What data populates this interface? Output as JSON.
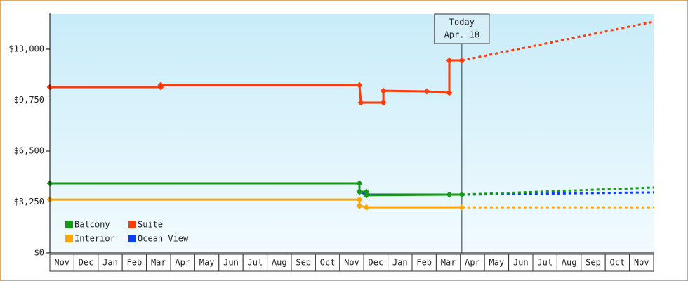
{
  "chart_data": {
    "type": "line",
    "months": [
      "Nov",
      "Dec",
      "Jan",
      "Feb",
      "Mar",
      "Apr",
      "May",
      "Jun",
      "Jul",
      "Aug",
      "Sep",
      "Oct",
      "Nov",
      "Dec",
      "Jan",
      "Feb",
      "Mar",
      "Apr",
      "May",
      "Jun",
      "Jul",
      "Aug",
      "Sep",
      "Oct",
      "Nov"
    ],
    "xlim": [
      0,
      25
    ],
    "ylim": [
      0,
      15240
    ],
    "yticks": [
      {
        "value": 0,
        "label": "$0"
      },
      {
        "value": 3250,
        "label": "$3,250"
      },
      {
        "value": 6500,
        "label": "$6,500"
      },
      {
        "value": 9750,
        "label": "$9,750"
      },
      {
        "value": 13000,
        "label": "$13,000"
      }
    ],
    "annotation": {
      "lines": [
        "Today",
        "Apr. 18"
      ],
      "x": 17.06
    },
    "series": [
      {
        "name": "Balcony",
        "color": "#159a15",
        "x": [
          0,
          12.82,
          12.82,
          13.11,
          13.11,
          16.54,
          17.06
        ],
        "values": [
          4440,
          4440,
          3900,
          3900,
          3680,
          3720,
          3720
        ],
        "projection_x": [
          17.06,
          25
        ],
        "projection_values": [
          3720,
          4170
        ]
      },
      {
        "name": "Suite",
        "color": "#ff3b0a",
        "x": [
          0,
          4.59,
          4.59,
          12.82,
          12.88,
          13.81,
          13.81,
          15.61,
          16.54,
          16.54,
          17.06
        ],
        "values": [
          10580,
          10580,
          10710,
          10710,
          9590,
          9590,
          10350,
          10310,
          10220,
          12280,
          12280
        ],
        "projection_x": [
          17.06,
          25
        ],
        "projection_values": [
          12280,
          14750
        ]
      },
      {
        "name": "Interior",
        "color": "#ffa500",
        "x": [
          0,
          12.82,
          12.82,
          13.11,
          17.06
        ],
        "values": [
          3400,
          3400,
          3000,
          2910,
          2910
        ],
        "projection_x": [
          17.06,
          25
        ],
        "projection_values": [
          2910,
          2910
        ]
      },
      {
        "name": "Ocean View",
        "color": "#0a3cff",
        "x": [
          12.82,
          13.11,
          17.06
        ],
        "values": [
          3900,
          3720,
          3720
        ],
        "projection_x": [
          17.06,
          25
        ],
        "projection_values": [
          3720,
          3860
        ]
      }
    ]
  }
}
